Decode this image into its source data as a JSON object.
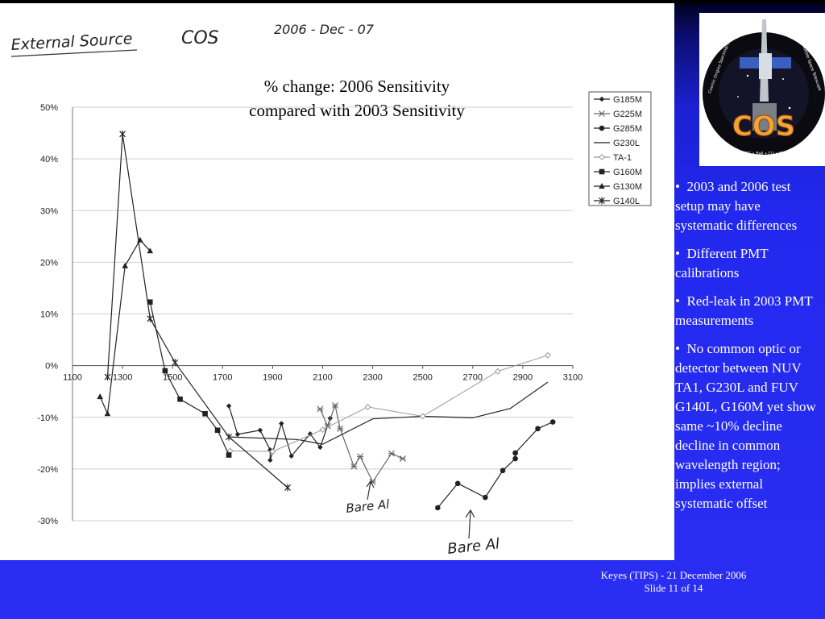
{
  "handwriting": {
    "source_note": "External Source",
    "instrument": "COS",
    "date": "2006 - Dec - 07",
    "annotation1": "Bare Al",
    "annotation2": "Bare Al"
  },
  "chart_data": {
    "type": "line",
    "title": "% change:  2006 Sensitivity",
    "subtitle": "compared with 2003 Sensitivity",
    "xlabel": "",
    "ylabel": "",
    "xlim": [
      1100,
      3100
    ],
    "ylim": [
      -30,
      50
    ],
    "x_ticks": [
      1100,
      1300,
      1500,
      1700,
      1900,
      2100,
      2300,
      2500,
      2700,
      2900,
      3100
    ],
    "y_ticks": [
      50,
      40,
      30,
      20,
      10,
      0,
      -10,
      -20,
      -30
    ],
    "y_tick_labels": [
      "50%",
      "40%",
      "30%",
      "20%",
      "10%",
      "0%",
      "-10%",
      "-20%",
      "-30%"
    ],
    "grid": true,
    "legend_position": "top-right",
    "colors": {
      "line": "#222222",
      "ta1": "#999999"
    },
    "series": [
      {
        "name": "G185M",
        "marker": "diamond",
        "color": "#222222",
        "x": [
          1725,
          1760,
          1850,
          1890,
          1890,
          1935,
          1975,
          2050,
          2090,
          2130
        ],
        "y": [
          -7.8,
          -13.3,
          -12.5,
          -16.3,
          -18.3,
          -11.2,
          -17.5,
          -13.2,
          -15.8,
          -10.2
        ]
      },
      {
        "name": "G225M",
        "marker": "cross",
        "color": "#666666",
        "x": [
          2090,
          2120,
          2150,
          2170,
          2225,
          2250,
          2300,
          2375,
          2420
        ],
        "y": [
          -8.4,
          -11.7,
          -7.7,
          -12.2,
          -19.5,
          -17.6,
          -22.5,
          -17,
          -18
        ]
      },
      {
        "name": "G285M",
        "marker": "circle",
        "color": "#222222",
        "x": [
          2560,
          2640,
          2750,
          2820,
          2870,
          2870,
          2870,
          2960,
          3020
        ],
        "y": [
          -27.5,
          -22.8,
          -25.5,
          -20.3,
          -18,
          -16.9,
          -16.9,
          -12.2,
          -10.9
        ]
      },
      {
        "name": "G230L",
        "marker": "none",
        "color": "#222222",
        "x": [
          1730,
          2000,
          2100,
          2300,
          2500,
          2700,
          2850,
          3000
        ],
        "y": [
          -13.8,
          -14.3,
          -15.2,
          -10.3,
          -9.8,
          -10.1,
          -8.3,
          -3.2
        ]
      },
      {
        "name": "TA-1",
        "marker": "diamond-open",
        "color": "#999999",
        "x": [
          1730,
          1900,
          2100,
          2280,
          2500,
          2800,
          3000
        ],
        "y": [
          -16.5,
          -16.6,
          -12.4,
          -8,
          -9.8,
          -1.1,
          2
        ]
      },
      {
        "name": "G160M",
        "marker": "square",
        "color": "#222222",
        "x": [
          1410,
          1470,
          1530,
          1630,
          1680,
          1725
        ],
        "y": [
          12.3,
          -1,
          -6.5,
          -9.3,
          -12.5,
          -17.3
        ]
      },
      {
        "name": "G130M",
        "marker": "triangle",
        "color": "#222222",
        "x": [
          1210,
          1240,
          1310,
          1370,
          1410
        ],
        "y": [
          -6,
          -9.3,
          19.3,
          24.3,
          22.2
        ]
      },
      {
        "name": "G140L",
        "marker": "star",
        "color": "#222222",
        "x": [
          1240,
          1300,
          1410,
          1510,
          1725,
          1960
        ],
        "y": [
          -2.2,
          44.8,
          9.1,
          0.6,
          -13.8,
          -23.6
        ]
      }
    ]
  },
  "slide": {
    "bullets": [
      "2003 and 2006 test setup may have systematic differences",
      "Different PMT calibrations",
      "Red-leak in 2003 PMT measurements",
      "No common optic or detector between NUV TA1, G230L and FUV G140L, G160M yet show same ~10% decline decline in common wavelength region; implies external systematic offset"
    ],
    "footer_line1": "Keyes (TIPS) - 21 December 2006",
    "footer_line2": "Slide 11 of  14"
  },
  "logo": {
    "text_main": "COS",
    "ring_left": "Cosmic Origins Spectrograph",
    "ring_right": "Hubble Space Telescope",
    "ring_bottom": "NASA • GSFC • Ball • CU • STScI • UCB"
  }
}
